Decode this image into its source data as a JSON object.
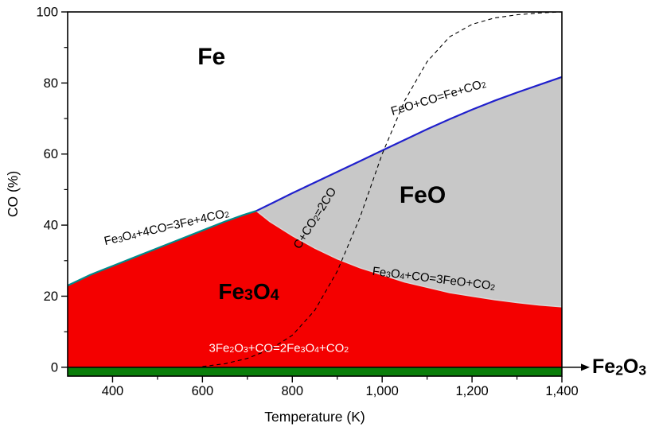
{
  "chart_data": {
    "type": "area",
    "xlabel": "Temperature (K)",
    "ylabel": "CO (%)",
    "xlim": [
      300,
      1400
    ],
    "ylim": [
      -2.5,
      100
    ],
    "x_ticks": {
      "major": [
        {
          "v": 400,
          "label": "400"
        },
        {
          "v": 600,
          "label": "600"
        },
        {
          "v": 800,
          "label": "800"
        },
        {
          "v": 1000,
          "label": "1,000"
        },
        {
          "v": 1200,
          "label": "1,200"
        },
        {
          "v": 1400,
          "label": "1,400"
        }
      ],
      "minor": [
        500,
        700,
        900,
        1100,
        1300
      ]
    },
    "y_ticks": {
      "major": [
        {
          "v": 0,
          "label": "0"
        },
        {
          "v": 20,
          "label": "20"
        },
        {
          "v": 40,
          "label": "40"
        },
        {
          "v": 60,
          "label": "60"
        },
        {
          "v": 80,
          "label": "80"
        },
        {
          "v": 100,
          "label": "100"
        }
      ],
      "minor": [
        10,
        30,
        50,
        70,
        90
      ]
    },
    "colors": {
      "fe_region": "#ffffff",
      "feo_region": "#c8c8c8",
      "fe3o4_region": "#f40000",
      "fe2o3_region": "#0a7e0a",
      "fe_fe3o4_line": "#008b8b",
      "fe_feo_line": "#2020cc",
      "fe3o4_feo_line": "#d8d8d8",
      "boudouard_line": "#000000",
      "axis": "#000000"
    },
    "series": [
      {
        "name": "fe-fe3o4",
        "reaction": "Fe_3O_4+4CO=3Fe+4CO_2",
        "style": "solid",
        "color": "#008b8b",
        "width": 2.2,
        "points": [
          [
            300,
            23
          ],
          [
            350,
            26
          ],
          [
            400,
            28.5
          ],
          [
            450,
            31
          ],
          [
            500,
            33.5
          ],
          [
            550,
            36
          ],
          [
            600,
            38.5
          ],
          [
            650,
            41
          ],
          [
            690,
            42.8
          ],
          [
            720,
            44
          ]
        ]
      },
      {
        "name": "fe-feo",
        "reaction": "FeO+CO=Fe+CO_2",
        "style": "solid",
        "color": "#2020cc",
        "width": 2.2,
        "points": [
          [
            720,
            44
          ],
          [
            760,
            46.5
          ],
          [
            800,
            49
          ],
          [
            850,
            52
          ],
          [
            900,
            55
          ],
          [
            950,
            58
          ],
          [
            1000,
            61
          ],
          [
            1050,
            64
          ],
          [
            1100,
            67
          ],
          [
            1150,
            69.8
          ],
          [
            1200,
            72.5
          ],
          [
            1250,
            75
          ],
          [
            1300,
            77.3
          ],
          [
            1350,
            79.5
          ],
          [
            1400,
            81.7
          ]
        ]
      },
      {
        "name": "fe3o4-feo",
        "reaction": "Fe_3O_4+CO=3FeO+CO_2",
        "style": "solid",
        "color": "#d8d8d8",
        "width": 1.5,
        "points": [
          [
            720,
            44
          ],
          [
            750,
            41
          ],
          [
            800,
            37
          ],
          [
            850,
            33.5
          ],
          [
            900,
            30.5
          ],
          [
            950,
            28
          ],
          [
            1000,
            26
          ],
          [
            1050,
            24
          ],
          [
            1100,
            22.5
          ],
          [
            1150,
            21
          ],
          [
            1200,
            20
          ],
          [
            1250,
            19
          ],
          [
            1300,
            18.2
          ],
          [
            1350,
            17.5
          ],
          [
            1400,
            17
          ]
        ]
      },
      {
        "name": "boudouard",
        "reaction": "C+CO_2=2CO",
        "style": "dashed",
        "color": "#000000",
        "width": 1.1,
        "points": [
          [
            600,
            0.2
          ],
          [
            650,
            1
          ],
          [
            700,
            2.5
          ],
          [
            750,
            5
          ],
          [
            800,
            9
          ],
          [
            850,
            16
          ],
          [
            900,
            27
          ],
          [
            950,
            42
          ],
          [
            1000,
            60
          ],
          [
            1050,
            75
          ],
          [
            1100,
            86
          ],
          [
            1150,
            93
          ],
          [
            1200,
            96.5
          ],
          [
            1250,
            98.3
          ],
          [
            1300,
            99.2
          ],
          [
            1350,
            99.7
          ],
          [
            1400,
            100
          ]
        ]
      }
    ],
    "regions": [
      {
        "id": "fe",
        "label": "Fe",
        "x": 620,
        "y": 87.5,
        "font": 30,
        "color": "#000000"
      },
      {
        "id": "feo",
        "label": "FeO",
        "x": 1090,
        "y": 48.5,
        "font": 30,
        "color": "#000000"
      },
      {
        "id": "fe3o4",
        "label": "Fe_3O_4",
        "x": 703,
        "y": 21.4,
        "font": 28,
        "color": "#000000"
      },
      {
        "id": "fe2o3",
        "label": "Fe_2O_3",
        "position": "outside-right",
        "font": 25,
        "color": "#000000"
      }
    ],
    "annotations": [
      {
        "text": "Fe_3O_4+4CO=3Fe+4CO_2",
        "x": 520,
        "y": 39.5,
        "rotate": -13,
        "color": "#000000",
        "font": 15
      },
      {
        "text": "FeO+CO=Fe+CO_2",
        "x": 1125,
        "y": 76,
        "rotate": -17,
        "color": "#000000",
        "font": 15
      },
      {
        "text": "C+CO_2=2CO",
        "x": 850,
        "y": 42,
        "rotate": -58,
        "color": "#000000",
        "font": 15
      },
      {
        "text": "Fe_3O_4+CO=3FeO+CO_2",
        "x": 1115,
        "y": 25,
        "rotate": 7,
        "color": "#000000",
        "font": 15
      },
      {
        "text": "3Fe_2O_3+CO=2Fe_3O_4+CO_2",
        "x": 770,
        "y": 5.5,
        "rotate": 0,
        "color": "#ffffff",
        "font": 15
      }
    ]
  }
}
